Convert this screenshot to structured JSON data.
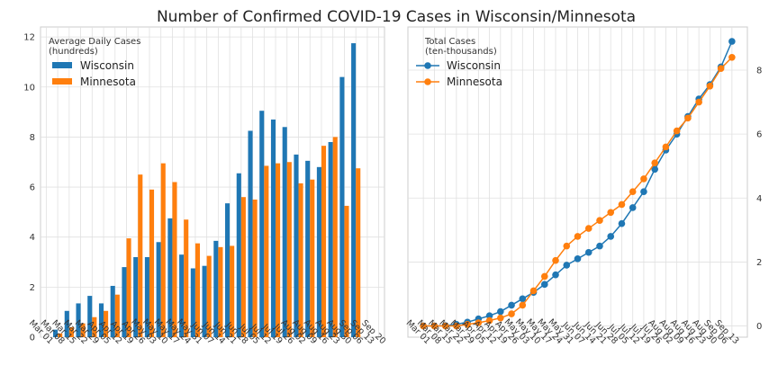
{
  "figure": {
    "title": "Number of Confirmed COVID-19 Cases in Wisconsin/Minnesota"
  },
  "colors": {
    "wisconsin": "#1f77b4",
    "minnesota": "#ff7f0e",
    "grid": "#e0e0e0",
    "panel_bg": "#ffffff"
  },
  "chart_data": [
    {
      "type": "bar",
      "legend": {
        "title_line1": "Average Daily Cases",
        "title_line2": "(hundreds)",
        "position": "top-left"
      },
      "categories": [
        "Mar 01",
        "Mar 08",
        "Mar 15",
        "Mar 22",
        "Mar 29",
        "Apr 05",
        "Apr 12",
        "Apr 19",
        "Apr 26",
        "May 03",
        "May 10",
        "May 17",
        "May 24",
        "May 31",
        "Jun 07",
        "Jun 14",
        "Jun 21",
        "Jun 28",
        "Jul 05",
        "Jul 12",
        "Jul 19",
        "Jul 26",
        "Aug 02",
        "Aug 09",
        "Aug 16",
        "Aug 23",
        "Aug 30",
        "Sep 06",
        "Sep 13",
        "Sep 20"
      ],
      "series": [
        {
          "name": "Wisconsin",
          "values": [
            0,
            0.3,
            1.05,
            1.35,
            1.65,
            1.35,
            2.05,
            2.8,
            3.2,
            3.2,
            3.8,
            4.75,
            3.3,
            2.75,
            2.85,
            3.85,
            5.35,
            6.55,
            8.25,
            9.05,
            8.7,
            8.4,
            7.3,
            7.05,
            6.8,
            7.8,
            10.4,
            11.75,
            0,
            0
          ]
        },
        {
          "name": "Minnesota",
          "values": [
            0,
            0.15,
            0.4,
            0.55,
            0.8,
            1.05,
            1.7,
            3.95,
            6.5,
            5.9,
            6.95,
            6.2,
            4.7,
            3.75,
            3.25,
            3.6,
            3.65,
            5.6,
            5.5,
            6.85,
            6.95,
            7.0,
            6.15,
            6.3,
            7.65,
            8.0,
            5.25,
            6.75,
            0,
            0
          ]
        }
      ],
      "ylim": [
        0,
        12.4
      ],
      "yticks": [
        0,
        2,
        4,
        6,
        8,
        10,
        12
      ],
      "y_axis_side": "left",
      "grid": true
    },
    {
      "type": "line",
      "legend": {
        "title_line1": "Total Cases",
        "title_line2": "(ten-thousands)",
        "position": "top-left"
      },
      "categories": [
        "Mar 01",
        "Mar 08",
        "Mar 15",
        "Mar 22",
        "Mar 29",
        "Apr 05",
        "Apr 12",
        "Apr 19",
        "Apr 26",
        "May 03",
        "May 10",
        "May 17",
        "May 24",
        "May 31",
        "Jun 07",
        "Jun 14",
        "Jun 21",
        "Jun 28",
        "Jul 05",
        "Jul 12",
        "Jul 19",
        "Jul 26",
        "Aug 02",
        "Aug 09",
        "Aug 16",
        "Aug 23",
        "Aug 30",
        "Sep 06",
        "Sep 13"
      ],
      "series": [
        {
          "name": "Wisconsin",
          "values": [
            0,
            0,
            0.01,
            0.05,
            0.12,
            0.22,
            0.32,
            0.45,
            0.65,
            0.85,
            1.05,
            1.3,
            1.6,
            1.9,
            2.1,
            2.3,
            2.5,
            2.8,
            3.2,
            3.7,
            4.2,
            4.9,
            5.5,
            6.0,
            6.55,
            7.1,
            7.55,
            8.1,
            8.9
          ]
        },
        {
          "name": "Minnesota",
          "values": [
            0,
            0,
            0,
            0,
            0.05,
            0.1,
            0.17,
            0.25,
            0.38,
            0.65,
            1.1,
            1.55,
            2.05,
            2.5,
            2.8,
            3.05,
            3.3,
            3.55,
            3.8,
            4.2,
            4.6,
            5.1,
            5.6,
            6.1,
            6.5,
            7.0,
            7.5,
            8.05,
            8.4
          ]
        }
      ],
      "ylim": [
        -0.35,
        9.35
      ],
      "yticks": [
        0,
        2,
        4,
        6,
        8
      ],
      "y_axis_side": "right",
      "grid": true
    }
  ]
}
